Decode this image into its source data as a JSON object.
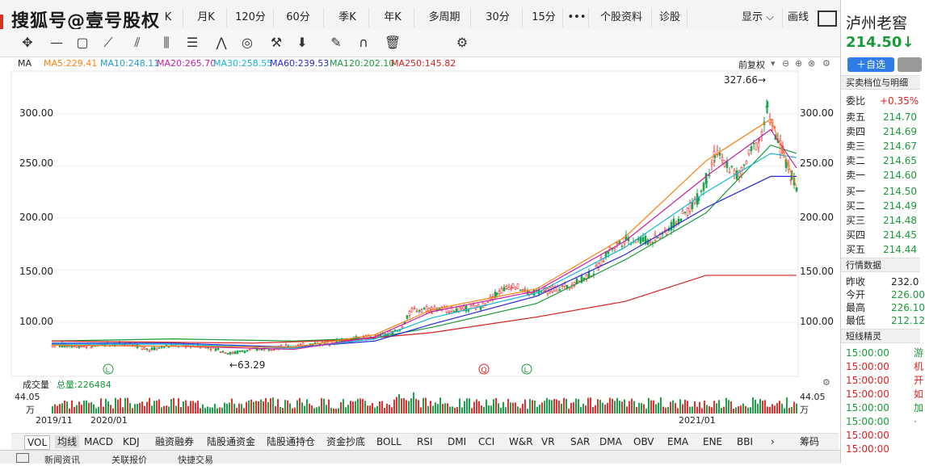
{
  "watermark": "搜狐号@壹号股权",
  "period_tabs": [
    "K",
    "月K",
    "120分",
    "60分",
    "季K",
    "年K",
    "多周期",
    "30分",
    "15分",
    "•••",
    "个股资料",
    "诊股"
  ],
  "display_menu": "显示",
  "draw_label": "画线",
  "ma_label": "MA",
  "ma_values": [
    {
      "text": "MA5:229.41",
      "color": "#ff7f0e"
    },
    {
      "text": "MA10:248.11",
      "color": "#1f9bd7"
    },
    {
      "text": "MA20:265.70",
      "color": "#c81ea6"
    },
    {
      "text": "MA30:258.55",
      "color": "#17b6d8"
    },
    {
      "text": "MA60:239.53",
      "color": "#2a2ad8"
    },
    {
      "text": "MA120:202.10",
      "color": "#1a9a3a"
    },
    {
      "text": "MA250:145.82",
      "color": "#d42020"
    }
  ],
  "adjust_label": "前复权",
  "y_ticks": [
    "300.00",
    "250.00",
    "200.00",
    "150.00",
    "100.00"
  ],
  "max_label": "327.66→",
  "min_label": "←63.29",
  "volume_label": "成交量",
  "volume_total": "总量:226484",
  "vol_axis_value": "44.05",
  "vol_axis_unit": "万",
  "dates": [
    "2019/11",
    "2020/01",
    "2021/01"
  ],
  "indicator_tabs": [
    "VOL",
    "均线",
    "MACD",
    "KDJ",
    "融资融券",
    "陆股通资金",
    "陆股通持仓",
    "资金抄底",
    "BOLL",
    "RSI",
    "DMI",
    "CCI",
    "W&R",
    "VR",
    "SAR",
    "DMA",
    "OBV",
    "EMA",
    "ENE",
    "BBI"
  ],
  "chips_label": "筹码",
  "bottom_tabs": [
    "新闻资讯",
    "关联报价",
    "快捷交易"
  ],
  "stock": {
    "name": "泸州老窖",
    "price": "214.50",
    "price_arrow": "↓",
    "add_watch": "＋自选",
    "section_orderbook": "买卖档位与明细",
    "ratio_label": "委比",
    "ratio_value": "+0.35%",
    "asks": [
      {
        "label": "卖五",
        "price": "214.70"
      },
      {
        "label": "卖四",
        "price": "214.69"
      },
      {
        "label": "卖三",
        "price": "214.67"
      },
      {
        "label": "卖二",
        "price": "214.65"
      },
      {
        "label": "卖一",
        "price": "214.60"
      }
    ],
    "bids": [
      {
        "label": "买一",
        "price": "214.50"
      },
      {
        "label": "买二",
        "price": "214.49"
      },
      {
        "label": "买三",
        "price": "214.48"
      },
      {
        "label": "买四",
        "price": "214.45"
      },
      {
        "label": "买五",
        "price": "214.44"
      }
    ],
    "section_quote": "行情数据",
    "quote": [
      {
        "label": "昨收",
        "value": "232.0"
      },
      {
        "label": "今开",
        "value": "226.00"
      },
      {
        "label": "最高",
        "value": "226.10"
      },
      {
        "label": "最低",
        "value": "212.12"
      }
    ],
    "section_short": "短线精灵",
    "short_times": [
      {
        "time": "15:00:00",
        "color": "#1a9a3a",
        "tag": "游"
      },
      {
        "time": "15:00:00",
        "color": "#e02020",
        "tag": "机"
      },
      {
        "time": "15:00:00",
        "color": "#e02020",
        "tag": "开"
      },
      {
        "time": "15:00:00",
        "color": "#e02020",
        "tag": "如"
      },
      {
        "time": "15:00:00",
        "color": "#1a9a3a",
        "tag": "加"
      },
      {
        "time": "15:00:00",
        "color": "#1a9a3a",
        "tag": "·"
      },
      {
        "time": "15:00:00",
        "color": "#e02020",
        "tag": ""
      },
      {
        "time": "15:00:00",
        "color": "#e02020",
        "tag": ""
      }
    ]
  }
}
